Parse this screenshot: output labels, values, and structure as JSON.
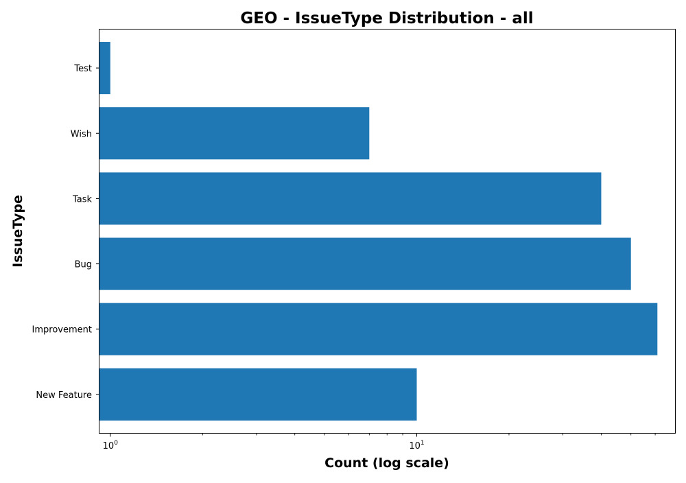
{
  "chart_data": {
    "type": "bar",
    "orientation": "horizontal",
    "title": "GEO - IssueType Distribution - all",
    "xlabel": "Count (log scale)",
    "ylabel": "IssueType",
    "x_scale": "log",
    "xlim": [
      0.917,
      70
    ],
    "categories": [
      "New Feature",
      "Improvement",
      "Bug",
      "Task",
      "Wish",
      "Test"
    ],
    "values": [
      10,
      61,
      50,
      40,
      7,
      1
    ],
    "x_ticks": [
      {
        "value": 1,
        "base": "10",
        "exp": "0"
      },
      {
        "value": 10,
        "base": "10",
        "exp": "1"
      }
    ],
    "minor_ticks": [
      2,
      3,
      4,
      5,
      6,
      7,
      8,
      9,
      20,
      30,
      40,
      50,
      60
    ],
    "bar_color": "#1f77b4",
    "grid": false,
    "legend": "none"
  }
}
